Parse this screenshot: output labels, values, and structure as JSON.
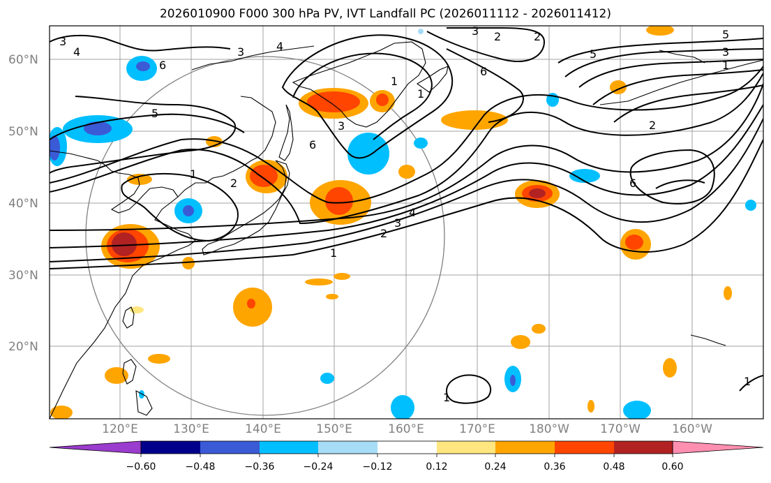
{
  "title": "2026010900 F000 300 hPa PV, IVT Landfall PC (2026011112 - 2026011412)",
  "map": {
    "lat_labels": [
      "60°N",
      "50°N",
      "40°N",
      "30°N",
      "20°N"
    ],
    "lon_labels": [
      "120°E",
      "130°E",
      "140°E",
      "150°E",
      "160°E",
      "170°E",
      "180°W",
      "170°W",
      "160°W"
    ],
    "contour_labels": [
      "4",
      "3",
      "3",
      "4",
      "2",
      "3",
      "6",
      "6",
      "5",
      "3",
      "1",
      "1",
      "2",
      "6",
      "5",
      "5",
      "2",
      "3",
      "1",
      "1",
      "6",
      "2",
      "4",
      "3",
      "2",
      "1",
      "1",
      "1"
    ]
  },
  "colorbar": {
    "ticks": [
      "−0.60",
      "−0.48",
      "−0.36",
      "−0.24",
      "−0.12",
      "0.12",
      "0.24",
      "0.36",
      "0.48",
      "0.60"
    ],
    "colors": [
      "#9a3ccd",
      "#00008b",
      "#3b5bd6",
      "#00bfff",
      "#a7dcf7",
      "#ffffff",
      "#ffe680",
      "#ffa500",
      "#ff4500",
      "#b22222",
      "#ff8fb0"
    ]
  },
  "colors": {
    "grid": "#a0a0a0",
    "contour": "#000000",
    "circle": "#808080"
  }
}
